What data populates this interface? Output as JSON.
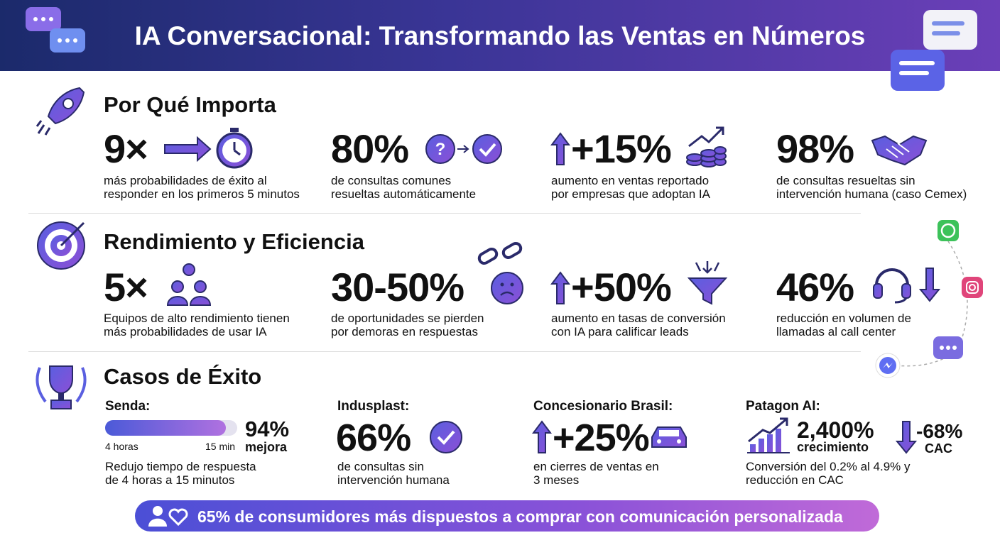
{
  "header": {
    "title": "IA Conversacional: Transformando las Ventas en Números"
  },
  "sections": [
    {
      "title": "Por Qué Importa",
      "items": [
        {
          "stat": "9×",
          "lines": [
            "más probabilidades de éxito al",
            "responder en los primeros 5 minutos"
          ]
        },
        {
          "stat": "80%",
          "lines": [
            "de consultas comunes",
            "resueltas automáticamente"
          ]
        },
        {
          "stat": "+15%",
          "lines": [
            "aumento en ventas reportado",
            "por empresas que adoptan IA"
          ]
        },
        {
          "stat": "98%",
          "lines": [
            "de consultas resueltas sin",
            "intervención humana (caso Cemex)"
          ]
        }
      ]
    },
    {
      "title": "Rendimiento y Eficiencia",
      "items": [
        {
          "stat": "5×",
          "lines": [
            "Equipos de alto rendimiento tienen",
            "más probabilidades de usar IA"
          ]
        },
        {
          "stat": "30-50%",
          "lines": [
            "de oportunidades se pierden",
            "por demoras en respuestas"
          ]
        },
        {
          "stat": "+50%",
          "lines": [
            "aumento en tasas de conversión",
            "con IA para calificar leads"
          ]
        },
        {
          "stat": "46%",
          "lines": [
            "reducción en volumen de",
            "llamadas al call center"
          ]
        }
      ]
    }
  ],
  "cases": {
    "title": "Casos de Éxito",
    "items": [
      {
        "name": "Senda:",
        "stat": "94%",
        "stat_label": "mejora",
        "bar_start": "4 horas",
        "bar_end": "15 min",
        "lines": [
          "Redujo tiempo de respuesta",
          "de 4 horas a 15 minutos"
        ]
      },
      {
        "name": "Indusplast:",
        "stat": "66%",
        "lines": [
          "de consultas sin",
          "intervención humana"
        ]
      },
      {
        "name": "Concesionario Brasil:",
        "stat": "+25%",
        "lines": [
          "en cierres de ventas en",
          "3 meses"
        ]
      },
      {
        "name": "Patagon AI:",
        "stat": "2,400%",
        "stat_label": "crecimiento",
        "stat2": "-68%",
        "stat2_label": "CAC",
        "lines": [
          "Conversión del 0.2% al 4.9% y",
          "reducción en CAC"
        ]
      }
    ]
  },
  "footer": {
    "text": "65% de consumidores más dispuestos a comprar con comunicación personalizada"
  }
}
